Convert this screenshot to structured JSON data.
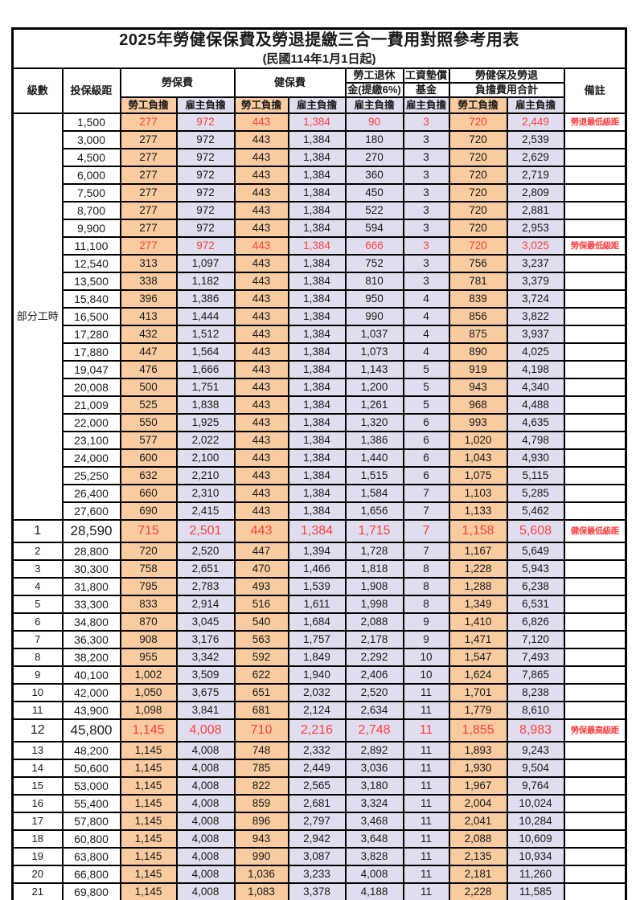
{
  "title": "2025年勞健保保費及勞退提繳三合一費用對照參考用表",
  "subtitle": "(民國114年1月1日起)",
  "colors": {
    "labor_share_bg": "#F8CBA0",
    "employer_share_bg": "#E0DEEE",
    "highlight_red": "#FF4040",
    "grid": "#000000"
  },
  "header": {
    "level": "級數",
    "bracket": "投保級距",
    "labor_insurance": "勞保費",
    "health_insurance": "健保費",
    "pension_line1": "勞工退休",
    "pension_line2": "金(提繳6%)",
    "wage_fund_line1": "工資墊償",
    "wage_fund_line2": "基金",
    "total_line1": "勞健保及勞退",
    "total_line2": "負擔費用合計",
    "employee_share": "勞工負擔",
    "employer_share": "雇主負擔",
    "remarks": "備註"
  },
  "part_time_label": "部分工時",
  "rows": [
    {
      "level": "",
      "bracket": "1,500",
      "values": [
        "277",
        "972",
        "443",
        "1,384",
        "90",
        "3",
        "720",
        "2,449"
      ],
      "note": "勞退最低級距",
      "red": true,
      "large": false
    },
    {
      "level": "",
      "bracket": "3,000",
      "values": [
        "277",
        "972",
        "443",
        "1,384",
        "180",
        "3",
        "720",
        "2,539"
      ],
      "note": "",
      "red": false,
      "large": false
    },
    {
      "level": "",
      "bracket": "4,500",
      "values": [
        "277",
        "972",
        "443",
        "1,384",
        "270",
        "3",
        "720",
        "2,629"
      ],
      "note": "",
      "red": false,
      "large": false
    },
    {
      "level": "",
      "bracket": "6,000",
      "values": [
        "277",
        "972",
        "443",
        "1,384",
        "360",
        "3",
        "720",
        "2,719"
      ],
      "note": "",
      "red": false,
      "large": false
    },
    {
      "level": "",
      "bracket": "7,500",
      "values": [
        "277",
        "972",
        "443",
        "1,384",
        "450",
        "3",
        "720",
        "2,809"
      ],
      "note": "",
      "red": false,
      "large": false
    },
    {
      "level": "",
      "bracket": "8,700",
      "values": [
        "277",
        "972",
        "443",
        "1,384",
        "522",
        "3",
        "720",
        "2,881"
      ],
      "note": "",
      "red": false,
      "large": false
    },
    {
      "level": "",
      "bracket": "9,900",
      "values": [
        "277",
        "972",
        "443",
        "1,384",
        "594",
        "3",
        "720",
        "2,953"
      ],
      "note": "",
      "red": false,
      "large": false
    },
    {
      "level": "",
      "bracket": "11,100",
      "values": [
        "277",
        "972",
        "443",
        "1,384",
        "666",
        "3",
        "720",
        "3,025"
      ],
      "note": "勞保最低級距",
      "red": true,
      "large": false
    },
    {
      "level": "",
      "bracket": "12,540",
      "values": [
        "313",
        "1,097",
        "443",
        "1,384",
        "752",
        "3",
        "756",
        "3,237"
      ],
      "note": "",
      "red": false,
      "large": false
    },
    {
      "level": "",
      "bracket": "13,500",
      "values": [
        "338",
        "1,182",
        "443",
        "1,384",
        "810",
        "3",
        "781",
        "3,379"
      ],
      "note": "",
      "red": false,
      "large": false
    },
    {
      "level": "",
      "bracket": "15,840",
      "values": [
        "396",
        "1,386",
        "443",
        "1,384",
        "950",
        "4",
        "839",
        "3,724"
      ],
      "note": "",
      "red": false,
      "large": false
    },
    {
      "level": "",
      "bracket": "16,500",
      "values": [
        "413",
        "1,444",
        "443",
        "1,384",
        "990",
        "4",
        "856",
        "3,822"
      ],
      "note": "",
      "red": false,
      "large": false
    },
    {
      "level": "",
      "bracket": "17,280",
      "values": [
        "432",
        "1,512",
        "443",
        "1,384",
        "1,037",
        "4",
        "875",
        "3,937"
      ],
      "note": "",
      "red": false,
      "large": false
    },
    {
      "level": "",
      "bracket": "17,880",
      "values": [
        "447",
        "1,564",
        "443",
        "1,384",
        "1,073",
        "4",
        "890",
        "4,025"
      ],
      "note": "",
      "red": false,
      "large": false
    },
    {
      "level": "",
      "bracket": "19,047",
      "values": [
        "476",
        "1,666",
        "443",
        "1,384",
        "1,143",
        "5",
        "919",
        "4,198"
      ],
      "note": "",
      "red": false,
      "large": false
    },
    {
      "level": "",
      "bracket": "20,008",
      "values": [
        "500",
        "1,751",
        "443",
        "1,384",
        "1,200",
        "5",
        "943",
        "4,340"
      ],
      "note": "",
      "red": false,
      "large": false
    },
    {
      "level": "",
      "bracket": "21,009",
      "values": [
        "525",
        "1,838",
        "443",
        "1,384",
        "1,261",
        "5",
        "968",
        "4,488"
      ],
      "note": "",
      "red": false,
      "large": false
    },
    {
      "level": "",
      "bracket": "22,000",
      "values": [
        "550",
        "1,925",
        "443",
        "1,384",
        "1,320",
        "6",
        "993",
        "4,635"
      ],
      "note": "",
      "red": false,
      "large": false
    },
    {
      "level": "",
      "bracket": "23,100",
      "values": [
        "577",
        "2,022",
        "443",
        "1,384",
        "1,386",
        "6",
        "1,020",
        "4,798"
      ],
      "note": "",
      "red": false,
      "large": false
    },
    {
      "level": "",
      "bracket": "24,000",
      "values": [
        "600",
        "2,100",
        "443",
        "1,384",
        "1,440",
        "6",
        "1,043",
        "4,930"
      ],
      "note": "",
      "red": false,
      "large": false
    },
    {
      "level": "",
      "bracket": "25,250",
      "values": [
        "632",
        "2,210",
        "443",
        "1,384",
        "1,515",
        "6",
        "1,075",
        "5,115"
      ],
      "note": "",
      "red": false,
      "large": false
    },
    {
      "level": "",
      "bracket": "26,400",
      "values": [
        "660",
        "2,310",
        "443",
        "1,384",
        "1,584",
        "7",
        "1,103",
        "5,285"
      ],
      "note": "",
      "red": false,
      "large": false
    },
    {
      "level": "",
      "bracket": "27,600",
      "values": [
        "690",
        "2,415",
        "443",
        "1,384",
        "1,656",
        "7",
        "1,133",
        "5,462"
      ],
      "note": "",
      "red": false,
      "large": false
    },
    {
      "level": "1",
      "bracket": "28,590",
      "values": [
        "715",
        "2,501",
        "443",
        "1,384",
        "1,715",
        "7",
        "1,158",
        "5,608"
      ],
      "note": "健保最低級距",
      "red": true,
      "large": true
    },
    {
      "level": "2",
      "bracket": "28,800",
      "values": [
        "720",
        "2,520",
        "447",
        "1,394",
        "1,728",
        "7",
        "1,167",
        "5,649"
      ],
      "note": "",
      "red": false,
      "large": false
    },
    {
      "level": "3",
      "bracket": "30,300",
      "values": [
        "758",
        "2,651",
        "470",
        "1,466",
        "1,818",
        "8",
        "1,228",
        "5,943"
      ],
      "note": "",
      "red": false,
      "large": false
    },
    {
      "level": "4",
      "bracket": "31,800",
      "values": [
        "795",
        "2,783",
        "493",
        "1,539",
        "1,908",
        "8",
        "1,288",
        "6,238"
      ],
      "note": "",
      "red": false,
      "large": false
    },
    {
      "level": "5",
      "bracket": "33,300",
      "values": [
        "833",
        "2,914",
        "516",
        "1,611",
        "1,998",
        "8",
        "1,349",
        "6,531"
      ],
      "note": "",
      "red": false,
      "large": false
    },
    {
      "level": "6",
      "bracket": "34,800",
      "values": [
        "870",
        "3,045",
        "540",
        "1,684",
        "2,088",
        "9",
        "1,410",
        "6,826"
      ],
      "note": "",
      "red": false,
      "large": false
    },
    {
      "level": "7",
      "bracket": "36,300",
      "values": [
        "908",
        "3,176",
        "563",
        "1,757",
        "2,178",
        "9",
        "1,471",
        "7,120"
      ],
      "note": "",
      "red": false,
      "large": false
    },
    {
      "level": "8",
      "bracket": "38,200",
      "values": [
        "955",
        "3,342",
        "592",
        "1,849",
        "2,292",
        "10",
        "1,547",
        "7,493"
      ],
      "note": "",
      "red": false,
      "large": false
    },
    {
      "level": "9",
      "bracket": "40,100",
      "values": [
        "1,002",
        "3,509",
        "622",
        "1,940",
        "2,406",
        "10",
        "1,624",
        "7,865"
      ],
      "note": "",
      "red": false,
      "large": false
    },
    {
      "level": "10",
      "bracket": "42,000",
      "values": [
        "1,050",
        "3,675",
        "651",
        "2,032",
        "2,520",
        "11",
        "1,701",
        "8,238"
      ],
      "note": "",
      "red": false,
      "large": false
    },
    {
      "level": "11",
      "bracket": "43,900",
      "values": [
        "1,098",
        "3,841",
        "681",
        "2,124",
        "2,634",
        "11",
        "1,779",
        "8,610"
      ],
      "note": "",
      "red": false,
      "large": false
    },
    {
      "level": "12",
      "bracket": "45,800",
      "values": [
        "1,145",
        "4,008",
        "710",
        "2,216",
        "2,748",
        "11",
        "1,855",
        "8,983"
      ],
      "note": "勞保最高級距",
      "red": true,
      "large": true
    },
    {
      "level": "13",
      "bracket": "48,200",
      "values": [
        "1,145",
        "4,008",
        "748",
        "2,332",
        "2,892",
        "11",
        "1,893",
        "9,243"
      ],
      "note": "",
      "red": false,
      "large": false
    },
    {
      "level": "14",
      "bracket": "50,600",
      "values": [
        "1,145",
        "4,008",
        "785",
        "2,449",
        "3,036",
        "11",
        "1,930",
        "9,504"
      ],
      "note": "",
      "red": false,
      "large": false
    },
    {
      "level": "15",
      "bracket": "53,000",
      "values": [
        "1,145",
        "4,008",
        "822",
        "2,565",
        "3,180",
        "11",
        "1,967",
        "9,764"
      ],
      "note": "",
      "red": false,
      "large": false
    },
    {
      "level": "16",
      "bracket": "55,400",
      "values": [
        "1,145",
        "4,008",
        "859",
        "2,681",
        "3,324",
        "11",
        "2,004",
        "10,024"
      ],
      "note": "",
      "red": false,
      "large": false
    },
    {
      "level": "17",
      "bracket": "57,800",
      "values": [
        "1,145",
        "4,008",
        "896",
        "2,797",
        "3,468",
        "11",
        "2,041",
        "10,284"
      ],
      "note": "",
      "red": false,
      "large": false
    },
    {
      "level": "18",
      "bracket": "60,800",
      "values": [
        "1,145",
        "4,008",
        "943",
        "2,942",
        "3,648",
        "11",
        "2,088",
        "10,609"
      ],
      "note": "",
      "red": false,
      "large": false
    },
    {
      "level": "19",
      "bracket": "63,800",
      "values": [
        "1,145",
        "4,008",
        "990",
        "3,087",
        "3,828",
        "11",
        "2,135",
        "10,934"
      ],
      "note": "",
      "red": false,
      "large": false
    },
    {
      "level": "20",
      "bracket": "66,800",
      "values": [
        "1,145",
        "4,008",
        "1,036",
        "3,233",
        "4,008",
        "11",
        "2,181",
        "11,260"
      ],
      "note": "",
      "red": false,
      "large": false
    },
    {
      "level": "21",
      "bracket": "69,800",
      "values": [
        "1,145",
        "4,008",
        "1,083",
        "3,378",
        "4,188",
        "11",
        "2,228",
        "11,585"
      ],
      "note": "",
      "red": false,
      "large": false
    }
  ]
}
